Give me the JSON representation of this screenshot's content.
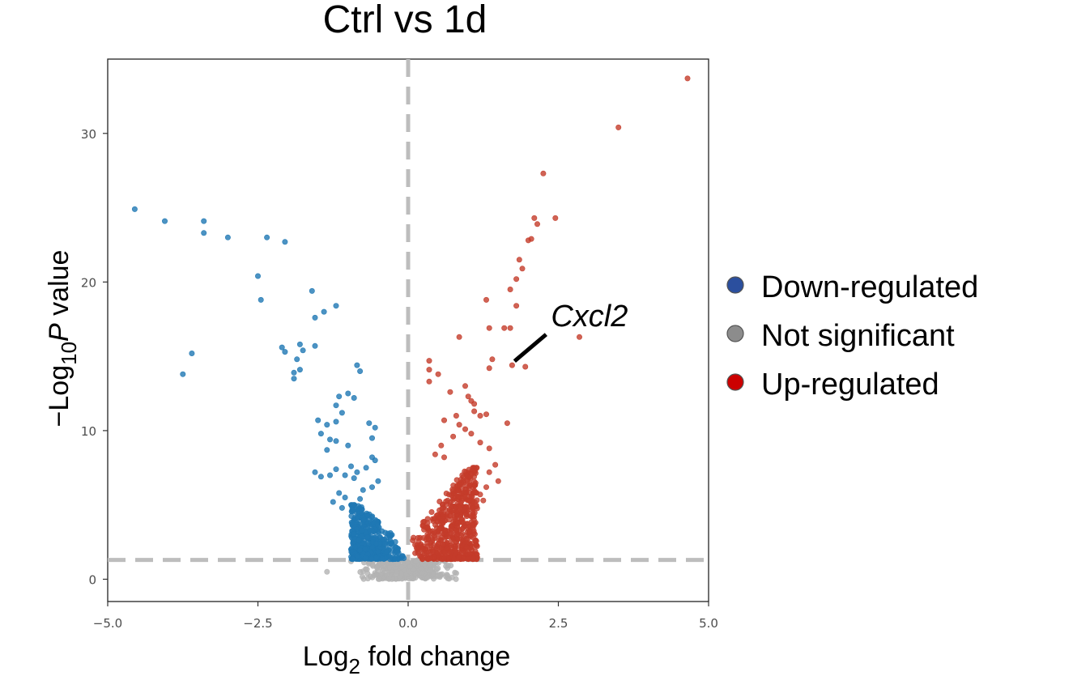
{
  "chart_data": {
    "type": "scatter",
    "title": "Ctrl vs 1d",
    "xlabel": {
      "pre": "Log",
      "sub": "2",
      "post": " fold change"
    },
    "ylabel": {
      "pre": "−Log",
      "sub": "10",
      "italic": "P",
      "post": " value"
    },
    "xlim": [
      -5,
      5
    ],
    "ylim": [
      -1.5,
      35
    ],
    "x_ticks": [
      -5,
      -2.5,
      0,
      2.5,
      5
    ],
    "x_tick_labels": [
      "−5.0",
      "−2.5",
      "0.0",
      "2.5",
      "5.0"
    ],
    "y_ticks": [
      0,
      10,
      20,
      30
    ],
    "y_tick_labels": [
      "0",
      "10",
      "20",
      "30"
    ],
    "grid": false,
    "thresholds": {
      "fold_change": 0,
      "neg_log10_p": 1.3
    },
    "colors": {
      "down": "#1f78b4",
      "ns": "#b3b3b3",
      "up": "#c43c2a",
      "threshold": "#bdbdbd",
      "legend_down": "#2b4f9e",
      "legend_ns": "#8c8c8c",
      "legend_up": "#cc0000"
    },
    "legend": {
      "position": "right",
      "entries": [
        {
          "key": "down",
          "label": "Down-regulated"
        },
        {
          "key": "ns",
          "label": "Not significant"
        },
        {
          "key": "up",
          "label": "Up-regulated"
        }
      ]
    },
    "annotation": {
      "label": "Cxcl2",
      "x": 1.73,
      "y": 14.4
    },
    "series": [
      {
        "name": "Down-regulated",
        "key": "down",
        "points": [
          [
            -4.55,
            24.9
          ],
          [
            -4.05,
            24.1
          ],
          [
            -3.4,
            24.1
          ],
          [
            -3.4,
            23.3
          ],
          [
            -3.0,
            23.0
          ],
          [
            -2.35,
            23.0
          ],
          [
            -2.05,
            22.7
          ],
          [
            -2.5,
            20.4
          ],
          [
            -2.45,
            18.8
          ],
          [
            -1.6,
            19.4
          ],
          [
            -1.4,
            18.0
          ],
          [
            -1.55,
            17.6
          ],
          [
            -1.2,
            18.4
          ],
          [
            -3.6,
            15.2
          ],
          [
            -3.75,
            13.8
          ],
          [
            -2.1,
            15.6
          ],
          [
            -2.05,
            15.3
          ],
          [
            -1.8,
            15.8
          ],
          [
            -1.75,
            15.4
          ],
          [
            -1.55,
            15.7
          ],
          [
            -1.85,
            14.8
          ],
          [
            -1.8,
            14.1
          ],
          [
            -1.9,
            13.9
          ],
          [
            -1.9,
            13.5
          ],
          [
            -0.85,
            14.4
          ],
          [
            -0.8,
            14.0
          ],
          [
            -1.0,
            12.5
          ],
          [
            -0.9,
            12.2
          ],
          [
            -1.15,
            12.3
          ],
          [
            -1.2,
            11.7
          ],
          [
            -1.1,
            11.2
          ],
          [
            -1.5,
            10.7
          ],
          [
            -1.35,
            10.4
          ],
          [
            -1.2,
            10.6
          ],
          [
            -0.65,
            10.5
          ],
          [
            -0.55,
            10.2
          ],
          [
            -1.45,
            9.8
          ],
          [
            -1.3,
            9.4
          ],
          [
            -1.2,
            9.3
          ],
          [
            -1.0,
            9.0
          ],
          [
            -0.6,
            9.5
          ],
          [
            -1.35,
            8.7
          ],
          [
            -0.6,
            8.2
          ],
          [
            -0.55,
            8.0
          ],
          [
            -1.55,
            7.2
          ],
          [
            -1.45,
            6.9
          ],
          [
            -1.3,
            7.0
          ],
          [
            -1.2,
            7.4
          ],
          [
            -1.05,
            7.0
          ],
          [
            -0.95,
            7.6
          ],
          [
            -0.85,
            7.2
          ],
          [
            -1.15,
            5.8
          ],
          [
            -1.25,
            5.2
          ],
          [
            -0.75,
            6.0
          ],
          [
            -0.5,
            6.6
          ],
          [
            -1.05,
            5.5
          ],
          [
            -0.6,
            6.2
          ],
          [
            -1.1,
            4.8
          ],
          [
            -0.9,
            6.8
          ],
          [
            -0.7,
            7.5
          ],
          [
            -0.8,
            5.4
          ]
        ],
        "cloud": {
          "n": 480,
          "x_min": -0.95,
          "x_max": -0.06,
          "y_min": 1.35,
          "y_max": 5.0,
          "seed": 11
        }
      },
      {
        "name": "Not significant",
        "key": "ns",
        "points": [
          [
            -1.35,
            0.5
          ],
          [
            0.8,
            0.4
          ],
          [
            -0.95,
            1.2
          ]
        ],
        "cloud": {
          "n": 320,
          "x_min": -0.85,
          "x_max": 0.85,
          "y_min": 0.0,
          "y_max": 1.3,
          "seed": 7
        }
      },
      {
        "name": "Up-regulated",
        "key": "up",
        "points": [
          [
            4.65,
            33.7
          ],
          [
            3.5,
            30.4
          ],
          [
            2.25,
            27.3
          ],
          [
            2.45,
            24.3
          ],
          [
            2.1,
            24.3
          ],
          [
            2.15,
            23.9
          ],
          [
            2.05,
            22.9
          ],
          [
            2.0,
            22.8
          ],
          [
            1.85,
            21.5
          ],
          [
            1.9,
            20.9
          ],
          [
            1.8,
            20.2
          ],
          [
            1.7,
            19.5
          ],
          [
            1.8,
            18.4
          ],
          [
            1.3,
            18.8
          ],
          [
            1.35,
            16.9
          ],
          [
            1.6,
            16.9
          ],
          [
            1.7,
            16.9
          ],
          [
            2.85,
            16.3
          ],
          [
            0.85,
            16.3
          ],
          [
            1.4,
            14.8
          ],
          [
            1.73,
            14.4
          ],
          [
            1.95,
            14.3
          ],
          [
            1.35,
            14.2
          ],
          [
            0.35,
            14.7
          ],
          [
            0.35,
            14.1
          ],
          [
            0.5,
            13.8
          ],
          [
            0.35,
            13.3
          ],
          [
            0.95,
            13.0
          ],
          [
            0.7,
            12.6
          ],
          [
            1.0,
            12.3
          ],
          [
            1.05,
            12.0
          ],
          [
            1.1,
            11.8
          ],
          [
            1.1,
            11.3
          ],
          [
            1.3,
            11.1
          ],
          [
            1.2,
            11.0
          ],
          [
            0.8,
            11.0
          ],
          [
            0.6,
            10.7
          ],
          [
            0.85,
            10.4
          ],
          [
            0.95,
            10.1
          ],
          [
            1.65,
            10.5
          ],
          [
            1.05,
            9.8
          ],
          [
            0.75,
            9.6
          ],
          [
            0.55,
            9.0
          ],
          [
            1.2,
            9.2
          ],
          [
            1.35,
            8.8
          ],
          [
            0.45,
            8.4
          ],
          [
            0.6,
            8.2
          ],
          [
            1.45,
            7.7
          ],
          [
            1.35,
            7.2
          ],
          [
            1.5,
            6.6
          ],
          [
            1.3,
            6.2
          ],
          [
            0.9,
            7.0
          ],
          [
            1.1,
            6.3
          ],
          [
            1.2,
            5.7
          ],
          [
            1.25,
            5.3
          ]
        ],
        "cloud": {
          "n": 600,
          "x_min": 0.06,
          "x_max": 1.15,
          "y_min": 1.35,
          "y_max": 7.5,
          "seed": 23
        }
      }
    ]
  }
}
